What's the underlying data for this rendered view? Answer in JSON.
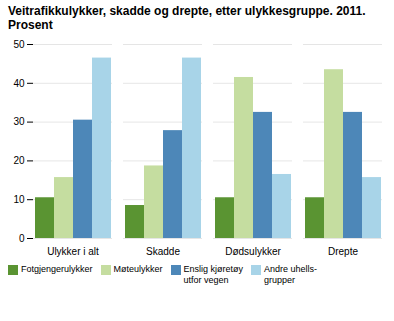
{
  "chart_data": {
    "type": "bar",
    "title": "Veitrafikkulykker, skadde og drepte, etter ulykkesgruppe. 2011.\nProsent",
    "categories": [
      "Ulykker i alt",
      "Skadde",
      "Dødsulykker",
      "Drepte"
    ],
    "series": [
      {
        "name": "Fotgjengerulykker",
        "color": "#5a9432",
        "values": [
          10.5,
          8.5,
          10.5,
          10.5
        ]
      },
      {
        "name": "Møteulykker",
        "color": "#c5dda0",
        "values": [
          15.7,
          18.7,
          41.5,
          43.5
        ]
      },
      {
        "name": "Enslig kjøretøy\nutfor vegen",
        "color": "#4d87b8",
        "values": [
          30.5,
          27.8,
          32.5,
          32.5
        ]
      },
      {
        "name": "Andre uhells-\ngrupper",
        "color": "#a8d4e8",
        "values": [
          46.5,
          46.5,
          16.5,
          15.7
        ]
      }
    ],
    "ylim": [
      0,
      50
    ],
    "yticks": [
      0,
      10,
      20,
      30,
      40,
      50
    ],
    "grid": true,
    "legend": "bottom"
  }
}
